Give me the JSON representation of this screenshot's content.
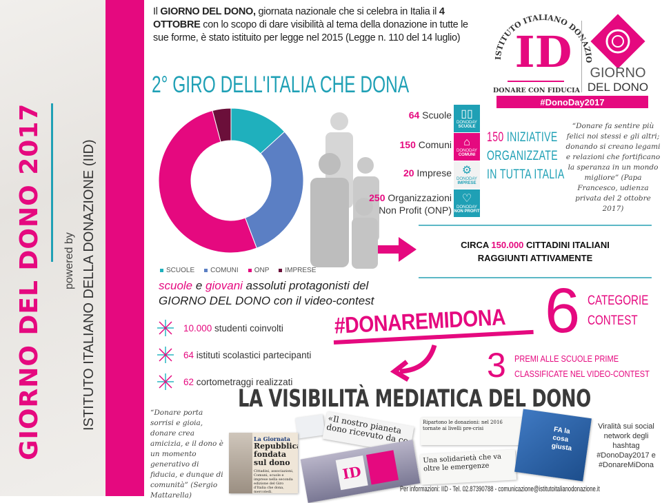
{
  "sidebar": {
    "title": "GIORNO DEL DONO 2017",
    "powered": "powered by",
    "org": "ISTITUTO ITALIANO DELLA DONAZIONE (IID)"
  },
  "intro": {
    "p1": "Il ",
    "b1": "GIORNO DEL DONO,",
    "p2": " giornata nazionale che si celebra in Italia il ",
    "b2": "4 OTTOBRE",
    "p3": " con lo scopo di dare visibilità al tema della donazione in tutte le sue forme, è stato istituito per legge nel 2015 (Legge n. 110 del 14 luglio)"
  },
  "logo": {
    "arc": "ISTITUTO ITALIANO DONAZIONE",
    "mark": "ID",
    "tagline": "DONARE CON FIDUCIA",
    "giorno1": "GIORNO",
    "giorno2": "DEL DONO",
    "hashtag": "#DonoDay2017"
  },
  "giro_title": "2° GIRO DELL'ITALIA CHE DONA",
  "chart_data": {
    "type": "pie",
    "donut": true,
    "categories": [
      "SCUOLE",
      "COMUNI",
      "ONP",
      "IMPRESE"
    ],
    "values": [
      64,
      150,
      250,
      20
    ],
    "colors": [
      "#1fb0bd",
      "#5b7fc4",
      "#e5097f",
      "#6b0f3a"
    ],
    "legend": "bottom"
  },
  "stats": [
    {
      "num": "64",
      "label": " Scuole",
      "icon": "book-icon",
      "badge": "SCUOLE",
      "color": "#1fa0b5"
    },
    {
      "num": "150",
      "label": " Comuni",
      "icon": "building-icon",
      "badge": "COMUNI",
      "color": "#e5097f"
    },
    {
      "num": "20",
      "label": " Imprese",
      "icon": "gears-icon",
      "badge": "IMPRESE",
      "color": "#f2f2f2"
    },
    {
      "num": "250",
      "label": " Organizzazioni",
      "label2": "Non Profit (ONP)",
      "icon": "heart-icon",
      "badge": "NON PROFIT",
      "color": "#1fa0b5"
    }
  ],
  "badge_prefix": "DONODAY",
  "iniziative": {
    "num": "150",
    "l1": " INIZIATIVE",
    "l2": "ORGANIZZATE",
    "l3": "IN TUTTA ITALIA"
  },
  "papa_quote": "“Donare fa sentire più felici noi stessi e gli altri; donando si creano legami e relazioni che fortificano la speranza in un mondo migliore” (Papa Francesco, udienza privata del 2 ottobre 2017)",
  "citizens": {
    "pre": "CIRCA ",
    "num": "150.000",
    "post": " CITTADINI ITALIANI",
    "line2": "RAGGIUNTI ATTIVAMENTE"
  },
  "scuole": {
    "w1": "scuole",
    "w2": " e ",
    "w3": "giovani",
    "w4": " assoluti protagonisti del",
    "l2a": "GIORNO DEL DONO",
    "l2b": " con il video-contest"
  },
  "bullets": [
    {
      "num": "10.000",
      "text": " studenti coinvolti"
    },
    {
      "num": "64",
      "text": " istituti scolastici partecipanti"
    },
    {
      "num": "62",
      "text": " cortometraggi realizzati"
    }
  ],
  "hashtag": "#DONAREMIDONA",
  "categorie": {
    "num": "6",
    "l1": "CATEGORIE",
    "l2": "CONTEST"
  },
  "premi": {
    "num": "3",
    "l1": "PREMI ALLE SCUOLE PRIME",
    "l2": "CLASSIFICATE NEL VIDEO-CONTEST"
  },
  "visibilita": "LA VISIBILITÀ MEDIATICA DEL DONO",
  "mattarella_quote": "“Donare porta sorrisi e gioia, donare crea amicizia, e il dono è un momento generativo di fiducia, e dunque di comunità” (Sergio Mattarella)",
  "media": {
    "c1_kicker": "La Giornata",
    "c1_head": "Repubblica fondata sul dono",
    "c1_body": "Cittadini, associazioni, Comuni, scuole e imprese nella seconda edizione del Giro d'Italia che dona, mercoledì.",
    "c2_head": "«Il nostro pianeta dono ricevuto da co",
    "c3_head": "Ripartono le donazioni: nel 2016 tornate ai livelli pre-crisi",
    "c4_head": "Una solidarietà che va oltre le emergenze",
    "c5_head": "FA la cosa giusta"
  },
  "viral": "Viralità sui social network degli hashtag #DonoDay2017 e #DonareMiDona",
  "info": "Per informazioni: IID - Tel. 02.87390788 - comunicazione@istitutoitalianodonazione.it"
}
